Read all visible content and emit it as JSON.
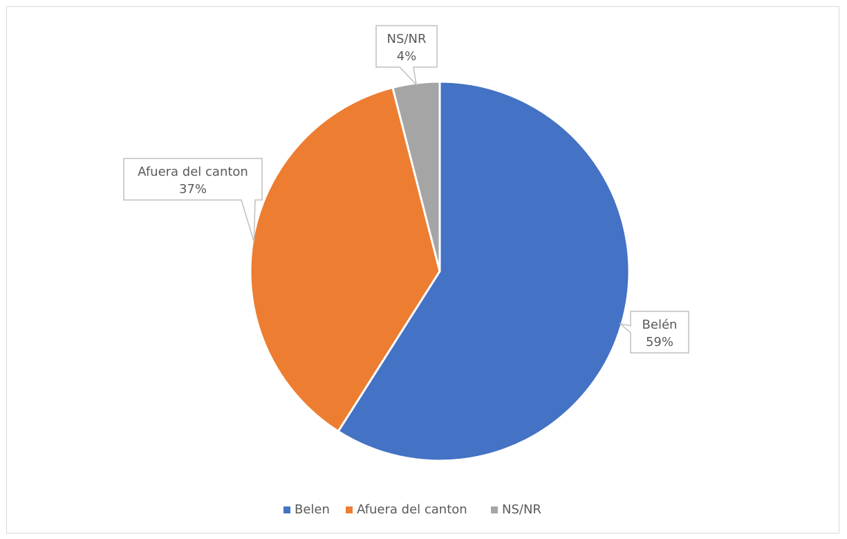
{
  "chart_data": {
    "type": "pie",
    "slices": [
      {
        "label": "Belén",
        "legend_label": "Belen",
        "value": 59,
        "value_text": "59%",
        "color": "#4472C4"
      },
      {
        "label": "Afuera del canton",
        "legend_label": "Afuera del canton",
        "value": 37,
        "value_text": "37%",
        "color": "#ED7D31"
      },
      {
        "label": "NS/NR",
        "legend_label": "NS/NR",
        "value": 4,
        "value_text": "4%",
        "color": "#A5A5A5"
      }
    ],
    "legend_position": "bottom"
  }
}
